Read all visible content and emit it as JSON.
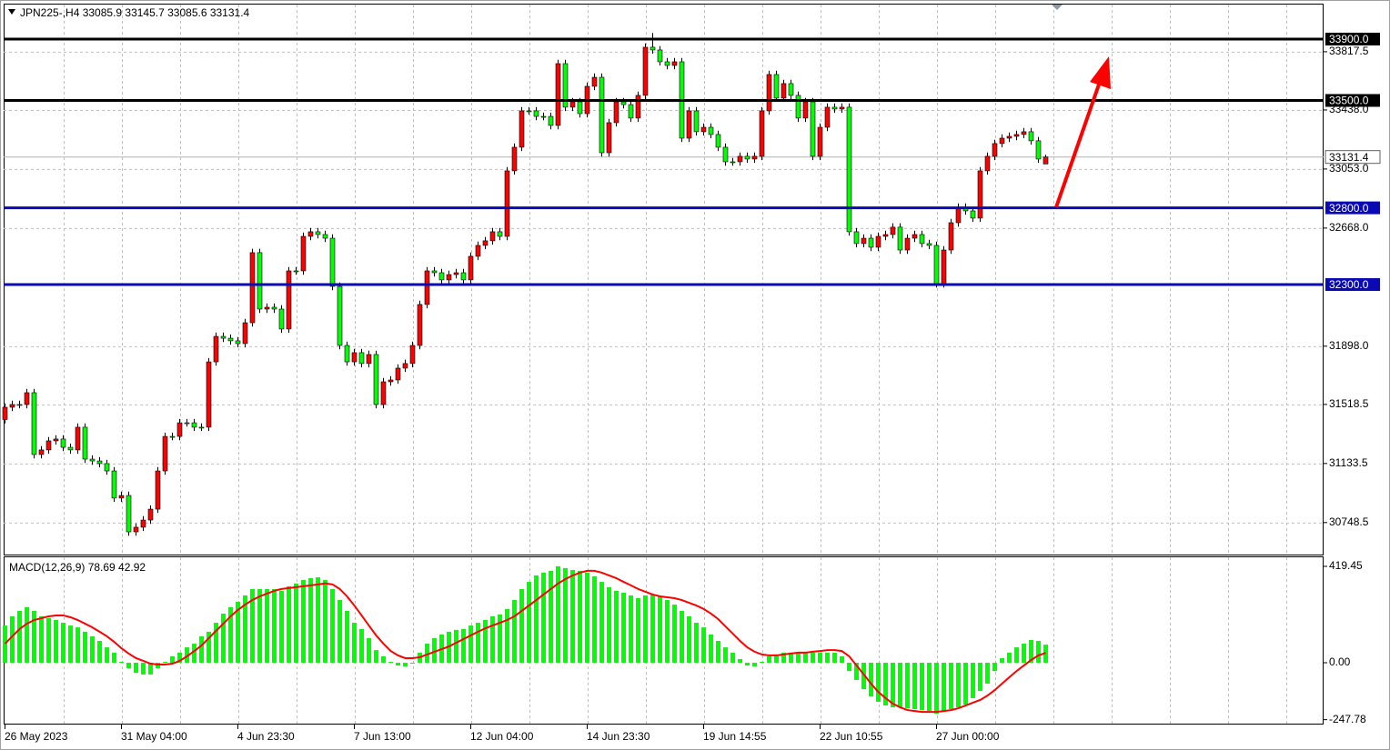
{
  "chart_data": [
    {
      "type": "candlestick",
      "title": "JPN225-,H4  33085.9 33145.7 33085.6 33131.4",
      "categories": [
        "26 May 2023",
        null,
        null,
        null,
        null,
        null,
        null,
        null,
        null,
        null,
        null,
        null,
        null,
        null,
        null,
        null,
        "31 May 04:00",
        null,
        null,
        null,
        null,
        null,
        null,
        null,
        null,
        null,
        null,
        null,
        null,
        null,
        null,
        null,
        "4 Jun 23:30",
        null,
        null,
        null,
        null,
        null,
        null,
        null,
        null,
        null,
        null,
        null,
        null,
        null,
        null,
        null,
        "7 Jun 13:00",
        null,
        null,
        null,
        null,
        null,
        null,
        null,
        null,
        null,
        null,
        null,
        null,
        null,
        null,
        null,
        "12 Jun 04:00",
        null,
        null,
        null,
        null,
        null,
        null,
        null,
        null,
        null,
        null,
        null,
        null,
        null,
        null,
        null,
        "14 Jun 23:30",
        null,
        null,
        null,
        null,
        null,
        null,
        null,
        null,
        null,
        null,
        null,
        null,
        null,
        null,
        null,
        "19 Jun 14:55",
        null,
        null,
        null,
        null,
        null,
        null,
        null,
        null,
        null,
        null,
        null,
        null,
        null,
        null,
        null,
        "22 Jun 10:55",
        null,
        null,
        null,
        null,
        null,
        null,
        null,
        null,
        null,
        null,
        null,
        null,
        null,
        null,
        null,
        "27 Jun 00:00",
        null,
        null,
        null,
        null,
        null,
        null,
        null,
        null,
        null,
        null,
        null,
        null,
        null,
        null,
        null
      ],
      "open": [
        31420,
        31500,
        31518,
        31518,
        31595,
        31192,
        31222,
        31281,
        31293,
        31239,
        31222,
        31370,
        31162,
        31150,
        31133,
        31085,
        30908,
        30925,
        30688,
        30718,
        30765,
        30836,
        31085,
        31310,
        31310,
        31399,
        31399,
        31370,
        31370,
        31796,
        31962,
        31950,
        31933,
        31915,
        32051,
        32508,
        32140,
        32152,
        32140,
        32010,
        32389,
        32389,
        32614,
        32644,
        32626,
        32602,
        32288,
        31903,
        31796,
        31856,
        31785,
        31844,
        31518,
        31666,
        31678,
        31755,
        31785,
        31903,
        32170,
        32389,
        32377,
        32330,
        32365,
        32377,
        32330,
        32484,
        32555,
        32585,
        32644,
        32614,
        33041,
        33195,
        33432,
        33432,
        33396,
        33396,
        33337,
        33740,
        33456,
        33491,
        33414,
        33592,
        33651,
        33159,
        33355,
        33491,
        33473,
        33385,
        33533,
        33847,
        33829,
        33752,
        33728,
        33752,
        33254,
        33432,
        33296,
        33325,
        33278,
        33195,
        33100,
        33100,
        33136,
        33118,
        33136,
        33432,
        33669,
        33515,
        33610,
        33533,
        33385,
        33491,
        33136,
        33325,
        33456,
        33444,
        33456,
        32644,
        32567,
        32602,
        32543,
        32614,
        32626,
        32674,
        32525,
        32602,
        32626,
        32567,
        32555,
        32306,
        32525,
        32703,
        32804,
        32780,
        32733,
        33041,
        33136,
        33219,
        33254,
        33266,
        33278,
        33296,
        33237,
        33085.9
      ],
      "high": [
        31525,
        31543,
        31543,
        31620,
        31620,
        31247,
        31306,
        31318,
        31318,
        31264,
        31395,
        31395,
        31187,
        31175,
        31158,
        31110,
        30950,
        30950,
        30743,
        30790,
        30861,
        31110,
        31335,
        31335,
        31424,
        31424,
        31424,
        31395,
        31821,
        31987,
        31987,
        31975,
        31958,
        32076,
        32533,
        32533,
        32177,
        32177,
        32165,
        32414,
        32414,
        32639,
        32669,
        32669,
        32651,
        32627,
        32313,
        31928,
        31881,
        31881,
        31869,
        31869,
        31691,
        31703,
        31780,
        31810,
        31928,
        32195,
        32414,
        32414,
        32402,
        32390,
        32402,
        32402,
        32509,
        32580,
        32610,
        32669,
        32669,
        33066,
        33220,
        33457,
        33457,
        33457,
        33421,
        33421,
        33765,
        33765,
        33516,
        33516,
        33617,
        33676,
        33676,
        33380,
        33516,
        33516,
        33498,
        33558,
        33872,
        33940,
        33854,
        33777,
        33777,
        33777,
        33457,
        33457,
        33350,
        33350,
        33303,
        33220,
        33125,
        33161,
        33161,
        33161,
        33457,
        33694,
        33694,
        33635,
        33635,
        33558,
        33516,
        33516,
        33350,
        33481,
        33481,
        33481,
        33481,
        32669,
        32627,
        32627,
        32639,
        32651,
        32699,
        32699,
        32627,
        32651,
        32651,
        32592,
        32580,
        32550,
        32728,
        32829,
        32829,
        32805,
        33066,
        33161,
        33244,
        33279,
        33291,
        33303,
        33321,
        33321,
        33262,
        33145.7
      ],
      "low": [
        31395,
        31475,
        31493,
        31493,
        31167,
        31167,
        31197,
        31256,
        31214,
        31197,
        31197,
        31137,
        31125,
        31108,
        31060,
        30883,
        30883,
        30663,
        30663,
        30693,
        30740,
        30811,
        31060,
        31285,
        31285,
        31374,
        31345,
        31345,
        31345,
        31771,
        31925,
        31908,
        31890,
        31890,
        32026,
        32115,
        32115,
        32115,
        31985,
        31985,
        32364,
        32364,
        32589,
        32601,
        32577,
        32263,
        31878,
        31771,
        31771,
        31760,
        31760,
        31493,
        31493,
        31641,
        31653,
        31730,
        31760,
        31878,
        32145,
        32352,
        32305,
        32305,
        32340,
        32305,
        32305,
        32459,
        32530,
        32560,
        32589,
        32589,
        33016,
        33170,
        33407,
        33371,
        33371,
        33312,
        33312,
        33431,
        33431,
        33389,
        33389,
        33567,
        33134,
        33134,
        33330,
        33448,
        33360,
        33360,
        33508,
        33804,
        33727,
        33703,
        33703,
        33229,
        33229,
        33271,
        33271,
        33253,
        33170,
        33075,
        33075,
        33075,
        33093,
        33093,
        33111,
        33407,
        33490,
        33490,
        33508,
        33360,
        33360,
        33111,
        33111,
        33300,
        33419,
        33419,
        32619,
        32542,
        32542,
        32518,
        32518,
        32589,
        32601,
        32500,
        32500,
        32577,
        32542,
        32530,
        32281,
        32281,
        32500,
        32678,
        32755,
        32708,
        32708,
        33016,
        33111,
        33194,
        33229,
        33241,
        33253,
        33212,
        33093,
        33085.6
      ],
      "close": [
        31500,
        31518,
        31518,
        31595,
        31192,
        31222,
        31281,
        31293,
        31239,
        31222,
        31370,
        31162,
        31150,
        31133,
        31085,
        30908,
        30925,
        30688,
        30718,
        30765,
        30836,
        31085,
        31310,
        31310,
        31399,
        31399,
        31370,
        31370,
        31796,
        31962,
        31950,
        31933,
        31915,
        32051,
        32508,
        32140,
        32152,
        32140,
        32010,
        32389,
        32389,
        32614,
        32644,
        32626,
        32602,
        32288,
        31903,
        31796,
        31856,
        31785,
        31844,
        31518,
        31666,
        31678,
        31755,
        31785,
        31903,
        32170,
        32389,
        32377,
        32330,
        32365,
        32377,
        32330,
        32484,
        32555,
        32585,
        32644,
        32614,
        33041,
        33195,
        33432,
        33432,
        33396,
        33396,
        33337,
        33740,
        33456,
        33491,
        33414,
        33592,
        33651,
        33159,
        33355,
        33491,
        33473,
        33385,
        33533,
        33847,
        33829,
        33752,
        33728,
        33752,
        33254,
        33432,
        33296,
        33325,
        33278,
        33195,
        33100,
        33100,
        33136,
        33118,
        33136,
        33432,
        33669,
        33515,
        33610,
        33533,
        33385,
        33491,
        33136,
        33325,
        33456,
        33444,
        33456,
        32644,
        32567,
        32602,
        32543,
        32614,
        32626,
        32674,
        32525,
        32602,
        32626,
        32567,
        32555,
        32306,
        32525,
        32703,
        32804,
        32780,
        32733,
        33041,
        33136,
        33219,
        33254,
        33266,
        33278,
        33296,
        33237,
        33118,
        33131.4
      ],
      "up_color": "#ff0000",
      "down_color": "#00ff00",
      "wick_color": "#000000",
      "ylim": [
        30540,
        34131
      ],
      "yticks": [
        33817.5,
        {
          "value": 33438,
          "label": "33438.0"
        },
        {
          "value": 33053,
          "label": "33053.0"
        },
        {
          "value": 32668,
          "label": "32668.0"
        },
        {
          "value": 31898,
          "label": "31898.0"
        },
        31518.5,
        31133.5,
        30748.5
      ],
      "grid": true,
      "levels": [
        {
          "value": 33900,
          "label": "33900.0",
          "color": "#000000"
        },
        {
          "value": 33500,
          "label": "33500.0",
          "color": "#000000"
        },
        {
          "value": 32800,
          "label": "32800.0",
          "color": "#0a0ab4"
        },
        {
          "value": 32300,
          "label": "32300.0",
          "color": "#0a0ab4"
        }
      ],
      "last_price": {
        "value": 33131.4,
        "label": "33131.4"
      }
    },
    {
      "type": "macd",
      "title": "MACD(12,26,9) 78.69 42.92",
      "series": [
        {
          "kind": "histogram",
          "color": "#00ff00",
          "values": [
            162,
            202,
            226,
            242,
            226,
            202,
            194,
            186,
            174,
            162,
            154,
            135,
            115,
            95,
            67,
            44,
            4,
            -24,
            -44,
            -51,
            -51,
            -24,
            4,
            28,
            44,
            67,
            83,
            115,
            135,
            174,
            214,
            242,
            265,
            293,
            321,
            321,
            321,
            321,
            313,
            333,
            345,
            360,
            368,
            372,
            360,
            321,
            273,
            226,
            174,
            147,
            107,
            55,
            28,
            4,
            -12,
            -16,
            -4,
            44,
            83,
            107,
            123,
            135,
            143,
            147,
            162,
            174,
            186,
            202,
            210,
            234,
            273,
            321,
            352,
            380,
            392,
            400,
            420,
            412,
            404,
            400,
            392,
            376,
            352,
            329,
            313,
            305,
            293,
            281,
            293,
            297,
            289,
            273,
            253,
            226,
            202,
            174,
            154,
            123,
            95,
            67,
            44,
            16,
            -12,
            -16,
            4,
            28,
            36,
            44,
            44,
            44,
            44,
            44,
            44,
            44,
            44,
            28,
            -36,
            -75,
            -115,
            -147,
            -170,
            -186,
            -194,
            -194,
            -198,
            -202,
            -206,
            -210,
            -222,
            -214,
            -202,
            -194,
            -182,
            -154,
            -123,
            -91,
            -36,
            20,
            44,
            67,
            83,
            99,
            95,
            78.69
          ]
        },
        {
          "kind": "line",
          "color": "#ff0000",
          "values": [
            83,
            115,
            147,
            170,
            186,
            194,
            202,
            206,
            206,
            198,
            186,
            170,
            154,
            135,
            115,
            91,
            63,
            40,
            20,
            8,
            -4,
            -8,
            -8,
            -4,
            8,
            28,
            51,
            75,
            107,
            139,
            170,
            202,
            230,
            253,
            273,
            289,
            301,
            313,
            321,
            325,
            329,
            333,
            337,
            341,
            345,
            341,
            321,
            289,
            249,
            206,
            162,
            119,
            83,
            51,
            32,
            20,
            20,
            24,
            36,
            48,
            59,
            71,
            87,
            103,
            119,
            135,
            150,
            162,
            174,
            186,
            202,
            226,
            249,
            273,
            297,
            321,
            345,
            364,
            380,
            392,
            400,
            400,
            392,
            380,
            368,
            352,
            337,
            321,
            309,
            297,
            289,
            285,
            281,
            273,
            261,
            249,
            234,
            214,
            190,
            158,
            127,
            95,
            67,
            48,
            36,
            32,
            32,
            36,
            40,
            44,
            44,
            48,
            51,
            55,
            55,
            51,
            28,
            -12,
            -51,
            -91,
            -127,
            -154,
            -178,
            -194,
            -206,
            -210,
            -214,
            -214,
            -214,
            -210,
            -206,
            -198,
            -186,
            -174,
            -162,
            -143,
            -119,
            -91,
            -63,
            -36,
            -12,
            12,
            32,
            42.92
          ]
        }
      ],
      "ylim": [
        -269,
        463
      ],
      "yticks": [
        419.45,
        {
          "value": 0,
          "label": "0.00"
        },
        -247.78
      ]
    }
  ]
}
